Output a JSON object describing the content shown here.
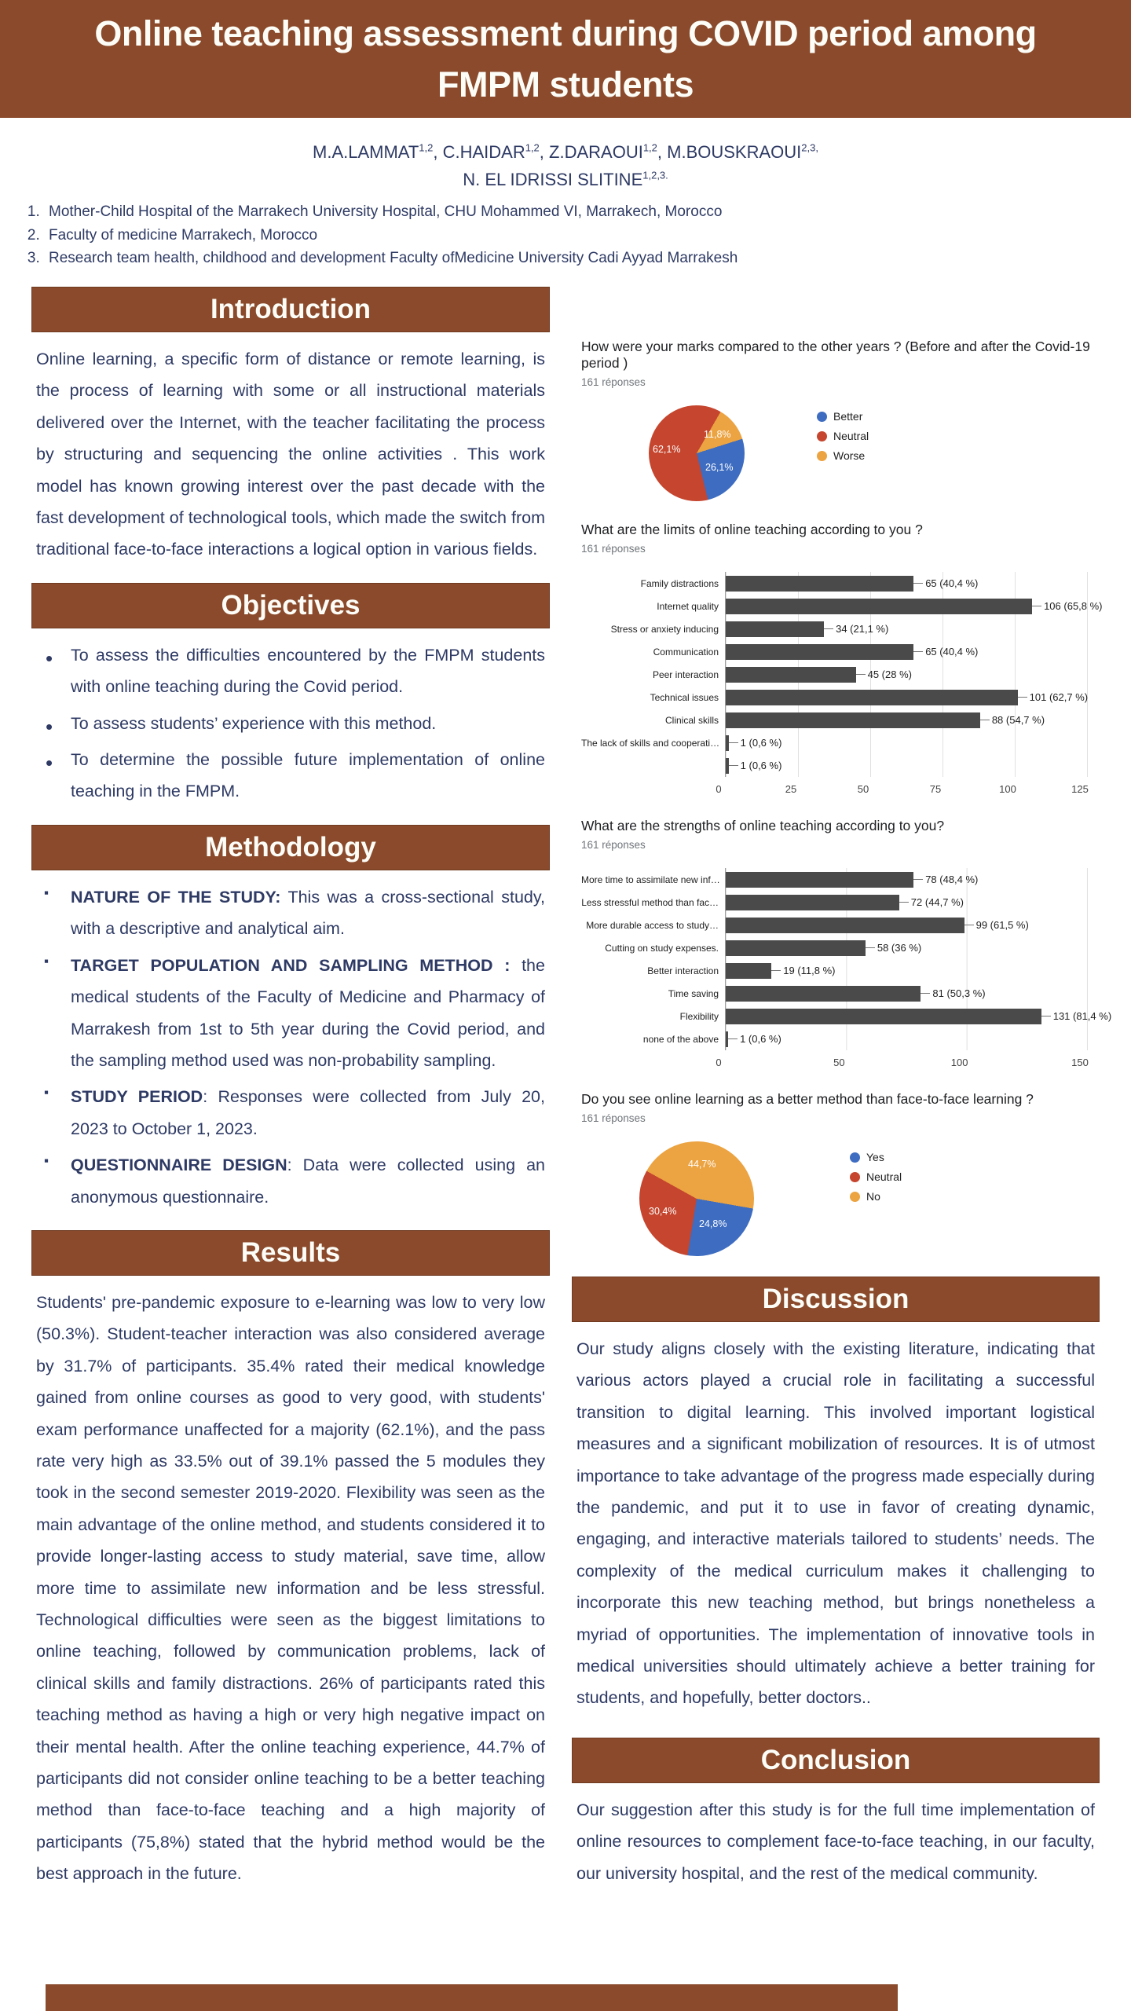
{
  "colors": {
    "brand_brown": "#8a4a2b",
    "text_navy": "#2e3a64",
    "pie_blue": "#3d6cc0",
    "pie_red": "#c5452e",
    "pie_orange": "#eca341",
    "bar_gray": "#4a4a4a"
  },
  "header": {
    "title": "Online teaching assessment during COVID period among FMPM students"
  },
  "authors": {
    "a1": "M.A.LAMMAT",
    "s1": "1,2",
    "sep1": ", ",
    "a2": "C.HAIDAR",
    "s2": "1,2",
    "sep2": ", ",
    "a3": "Z.DARAOUI",
    "s3": "1,2",
    "sep3": ", ",
    "a4": "M.BOUSKRAOUI",
    "s4": "2,3,",
    "line2": "N. EL IDRISSI SLITINE",
    "s5": "1,2,3."
  },
  "affiliations": [
    "Mother-Child Hospital of the Marrakech University Hospital, CHU Mohammed VI, Marrakech, Morocco",
    "Faculty of medicine Marrakech, Morocco",
    "Research team health, childhood and development Faculty ofMedicine University Cadi Ayyad Marrakesh"
  ],
  "sections": {
    "introduction": {
      "title": "Introduction",
      "body": "Online learning, a specific form of distance or remote learning, is the process of learning with some or all instructional materials delivered over the Internet, with the teacher facilitating the process by structuring and sequencing the online activities . This work model has known growing interest over the past decade with the fast development of technological tools, which made the switch from traditional face-to-face interactions a logical option in various fields."
    },
    "objectives": {
      "title": "Objectives",
      "items": [
        "To assess the difficulties encountered by the FMPM students with online teaching during the Covid period.",
        "To assess students’ experience with this method.",
        "To determine the possible future implementation of online teaching in the FMPM."
      ]
    },
    "methodology": {
      "title": "Methodology",
      "items": [
        {
          "lead": "NATURE OF THE STUDY:",
          "text": " This was a cross-sectional study, with a descriptive and analytical aim."
        },
        {
          "lead": "TARGET POPULATION AND SAMPLING METHOD :",
          "text": " the medical students of the Faculty of Medicine and Pharmacy of Marrakesh from 1st to 5th year during the Covid period, and the sampling method used was non-probability sampling."
        },
        {
          "lead": "STUDY PERIOD",
          "text": ": Responses were collected from July 20, 2023 to October 1, 2023."
        },
        {
          "lead": "QUESTIONNAIRE DESIGN",
          "text": ": Data were collected using an anonymous questionnaire."
        }
      ]
    },
    "results": {
      "title": "Results",
      "body": "Students' pre-pandemic exposure to e-learning was low to very low (50.3%). Student-teacher interaction was also considered average by 31.7% of participants. 35.4% rated their medical knowledge gained from online courses as good to very good, with students' exam performance unaffected for a majority (62.1%), and the pass rate very high as 33.5% out of 39.1% passed the 5 modules they took in the second semester 2019-2020.  Flexibility was seen as the main advantage of the online method, and students considered it to provide longer-lasting access to study material, save time, allow more time to assimilate new information and be less stressful.  Technological difficulties were seen as the biggest limitations to online teaching, followed by communication problems, lack of clinical skills and family distractions. 26% of participants rated this teaching method as having a high or very high negative impact on their mental health. After the online teaching experience, 44.7% of participants did not consider online teaching to be a better teaching method than face-to-face teaching and a high majority of participants (75,8%) stated that the hybrid method would be the best approach in the future."
    },
    "discussion": {
      "title": "Discussion",
      "body": "Our study aligns closely with the existing literature, indicating that various actors played a crucial role in facilitating a successful transition to digital learning. This involved important logistical measures and a significant mobilization of resources. It is of utmost importance to take advantage of the progress made especially during the pandemic, and put it to use in favor of creating dynamic, engaging, and interactive materials tailored to students’ needs. The complexity of the medical curriculum makes it challenging to incorporate this new teaching method, but brings nonetheless a myriad of opportunities. The implementation of innovative tools in medical universities should ultimately achieve a better training for students, and hopefully, better doctors.."
    },
    "conclusion": {
      "title": "Conclusion",
      "body": "Our suggestion after this study is for the full time implementation of online resources to complement face-to-face teaching, in our faculty, our university hospital, and the rest of the medical community."
    }
  },
  "chart_data": [
    {
      "type": "pie",
      "title": "How were your marks compared to the other years ?  (Before and after the Covid-19 period )",
      "responses": "161 réponses",
      "legend": [
        "Better",
        "Neutral",
        "Worse"
      ],
      "legend_colors": [
        "#3d6cc0",
        "#c5452e",
        "#eca341"
      ],
      "start_angle": 30,
      "legend_position": "right",
      "slices": [
        {
          "label": "Worse",
          "pct": 11.8,
          "color": "#eca341",
          "text": "11,8%"
        },
        {
          "label": "Better",
          "pct": 26.1,
          "color": "#3d6cc0",
          "text": "26,1%"
        },
        {
          "label": "Neutral",
          "pct": 62.1,
          "color": "#c5452e",
          "text": "62,1%"
        }
      ]
    },
    {
      "type": "bar",
      "title": "What are the limits of online teaching according to you ?",
      "responses": "161 réponses",
      "categories": [
        "Family distractions",
        "Internet quality",
        "Stress or anxiety inducing",
        "Communication",
        "Peer interaction",
        "Technical issues",
        "Clinical skills",
        "The lack of skills and cooperati…",
        ""
      ],
      "values": [
        65,
        106,
        34,
        65,
        45,
        101,
        88,
        1,
        1
      ],
      "value_labels": [
        "65 (40,4 %)",
        "106 (65,8 %)",
        "34 (21,1 %)",
        "65 (40,4 %)",
        "45 (28 %)",
        "101 (62,7 %)",
        "88 (54,7 %)",
        "1 (0,6 %)",
        "1 (0,6 %)"
      ],
      "xticks": [
        "0",
        "25",
        "50",
        "75",
        "100",
        "125"
      ],
      "xmax": 125,
      "bar_color": "#4a4a4a",
      "grid": true
    },
    {
      "type": "bar",
      "title": "What are the strengths of online teaching according to you?",
      "responses": "161 réponses",
      "categories": [
        "More time to assimilate new inf…",
        "Less stressful method than fac…",
        "More durable access to study…",
        "Cutting on study expenses.",
        "Better interaction",
        "Time saving",
        "Flexibility",
        "none of the above"
      ],
      "values": [
        78,
        72,
        99,
        58,
        19,
        81,
        131,
        1
      ],
      "value_labels": [
        "78 (48,4 %)",
        "72 (44,7 %)",
        "99 (61,5 %)",
        "58 (36 %)",
        "19 (11,8 %)",
        "81 (50,3 %)",
        "131 (81,4 %)",
        "1 (0,6 %)"
      ],
      "xticks": [
        "0",
        "50",
        "100",
        "150"
      ],
      "xmax": 150,
      "bar_color": "#4a4a4a",
      "grid": true
    },
    {
      "type": "pie",
      "title": "Do you see online learning as a better method than face-to-face learning ?",
      "responses": "161 réponses",
      "legend": [
        "Yes",
        "Neutral",
        "No"
      ],
      "legend_colors": [
        "#3d6cc0",
        "#c5452e",
        "#eca341"
      ],
      "start_angle": 299,
      "legend_position": "right",
      "slices": [
        {
          "label": "No",
          "pct": 44.7,
          "color": "#eca341",
          "text": "44,7%"
        },
        {
          "label": "Yes",
          "pct": 24.8,
          "color": "#3d6cc0",
          "text": "24,8%"
        },
        {
          "label": "Neutral",
          "pct": 30.4,
          "color": "#c5452e",
          "text": "30,4%"
        }
      ]
    }
  ]
}
